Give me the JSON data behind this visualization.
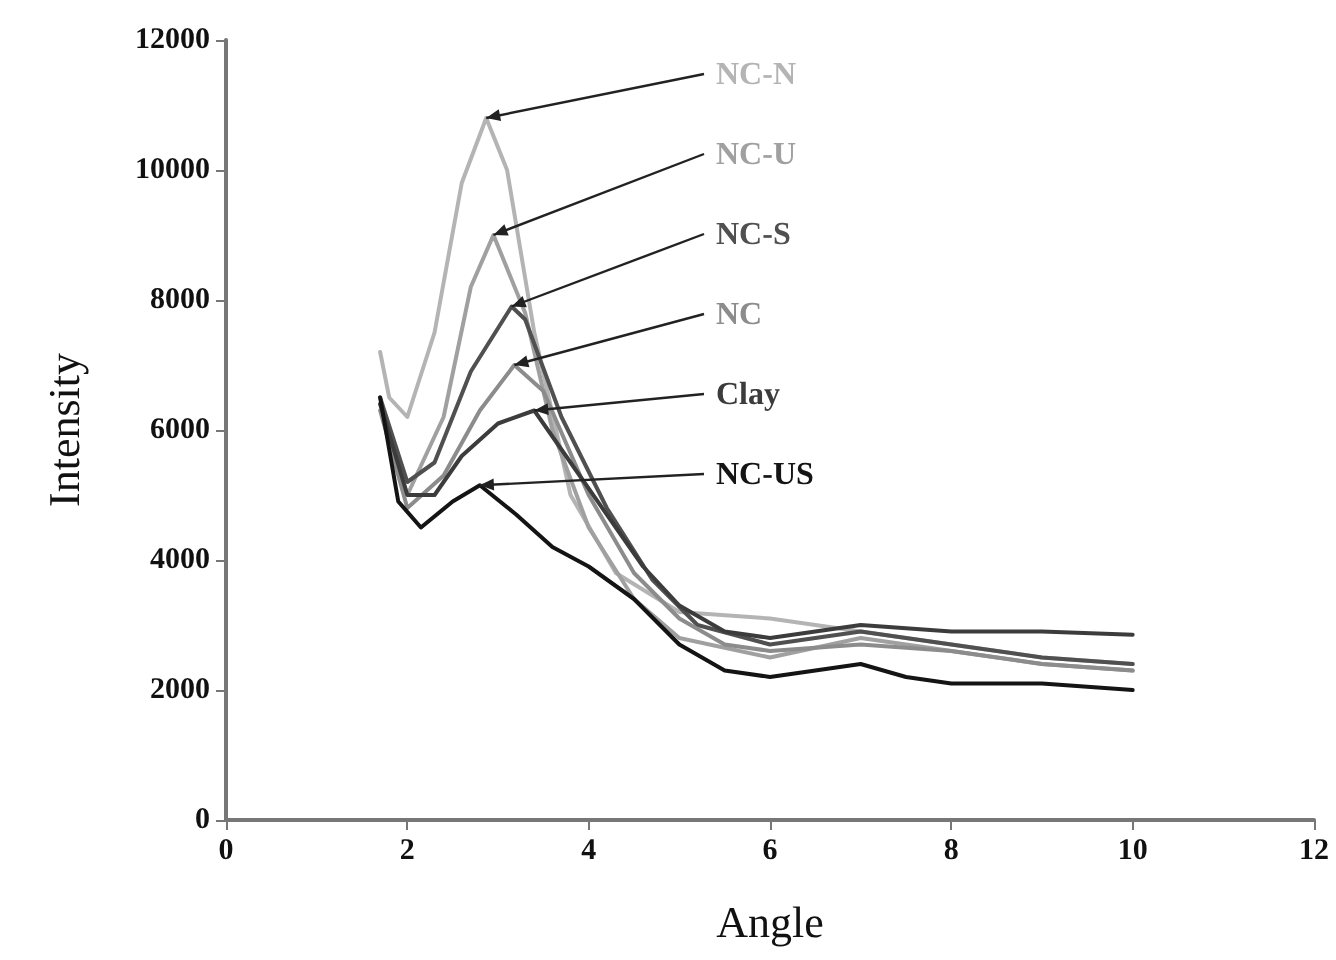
{
  "chart_data": {
    "type": "line",
    "xlabel": "Angle",
    "ylabel": "Intensity",
    "xlim": [
      0,
      12
    ],
    "xticks": [
      0,
      2,
      4,
      6,
      8,
      10,
      12
    ],
    "ylim": [
      0,
      12000
    ],
    "yticks": [
      0,
      2000,
      4000,
      6000,
      8000,
      10000,
      12000
    ],
    "grid": false,
    "marker": "none",
    "line_style": "solid",
    "series": [
      {
        "name": "NC-N",
        "color": "#b4b4b4",
        "x": [
          1.7,
          1.8,
          2,
          2.3,
          2.6,
          2.87,
          3.1,
          3.4,
          3.8,
          4.3,
          5,
          6,
          7,
          8,
          9,
          10
        ],
        "values": [
          7200,
          6500,
          6200,
          7500,
          9800,
          10800,
          10000,
          7500,
          5000,
          3800,
          3200,
          3100,
          2900,
          2700,
          2500,
          2400
        ]
      },
      {
        "name": "NC-U",
        "color": "#a0a0a0",
        "x": [
          1.7,
          2,
          2.4,
          2.7,
          2.95,
          3.3,
          3.6,
          4,
          4.5,
          5,
          6,
          7,
          8,
          9,
          10
        ],
        "values": [
          6400,
          5000,
          6200,
          8200,
          9000,
          7800,
          6000,
          4500,
          3400,
          2800,
          2500,
          2800,
          2600,
          2400,
          2300
        ]
      },
      {
        "name": "NC-S",
        "color": "#505050",
        "x": [
          1.7,
          2,
          2.3,
          2.7,
          3.15,
          3.3,
          3.7,
          4.2,
          4.7,
          5.2,
          6,
          7,
          8,
          9,
          10
        ],
        "values": [
          6500,
          5200,
          5500,
          6900,
          7900,
          7700,
          6200,
          4800,
          3700,
          3000,
          2700,
          2900,
          2700,
          2500,
          2400
        ]
      },
      {
        "name": "NC",
        "color": "#8c8c8c",
        "x": [
          1.7,
          2,
          2.4,
          2.8,
          3.18,
          3.5,
          4,
          4.5,
          5,
          5.5,
          6,
          7,
          8,
          9,
          10
        ],
        "values": [
          6300,
          4800,
          5300,
          6300,
          7000,
          6600,
          5000,
          3800,
          3100,
          2700,
          2600,
          2700,
          2600,
          2400,
          2300
        ]
      },
      {
        "name": "Clay",
        "color": "#3c3c3c",
        "x": [
          1.7,
          2,
          2.3,
          2.6,
          3,
          3.4,
          3.8,
          4.2,
          4.6,
          5,
          5.5,
          6,
          6.5,
          7,
          8,
          9,
          10
        ],
        "values": [
          6400,
          5000,
          5000,
          5600,
          6100,
          6300,
          5500,
          4700,
          3900,
          3300,
          2900,
          2800,
          2900,
          3000,
          2900,
          2900,
          2850
        ]
      },
      {
        "name": "NC-US",
        "color": "#141414",
        "x": [
          1.7,
          1.9,
          2.15,
          2.5,
          2.8,
          3.2,
          3.6,
          4,
          4.5,
          5,
          5.5,
          6,
          7,
          7.5,
          8,
          9,
          10
        ],
        "values": [
          6500,
          4900,
          4500,
          4900,
          5150,
          4700,
          4200,
          3900,
          3400,
          2700,
          2300,
          2200,
          2400,
          2200,
          2100,
          2100,
          2000
        ]
      }
    ]
  }
}
